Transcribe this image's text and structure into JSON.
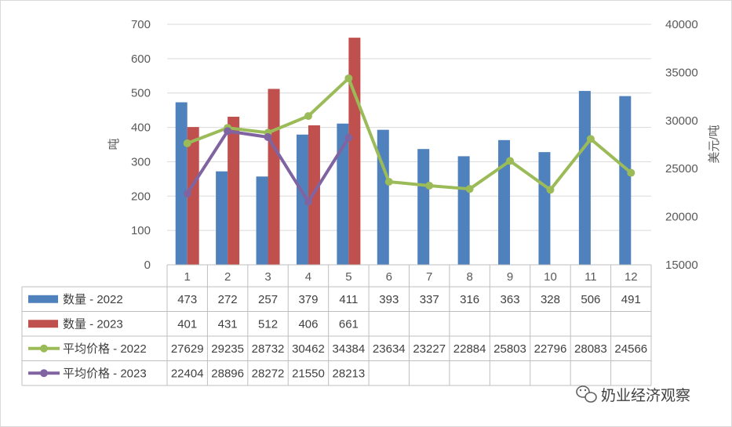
{
  "chart_data": {
    "type": "bar",
    "categories": [
      "1",
      "2",
      "3",
      "4",
      "5",
      "6",
      "7",
      "8",
      "9",
      "10",
      "11",
      "12"
    ],
    "series": [
      {
        "name": "数量 - 2022",
        "kind": "bar",
        "axis": "left",
        "color": "#4f81bd",
        "values": [
          473,
          272,
          257,
          379,
          411,
          393,
          337,
          316,
          363,
          328,
          506,
          491
        ]
      },
      {
        "name": "数量 - 2023",
        "kind": "bar",
        "axis": "left",
        "color": "#c0504d",
        "values": [
          401,
          431,
          512,
          406,
          661,
          null,
          null,
          null,
          null,
          null,
          null,
          null
        ]
      },
      {
        "name": "平均价格 - 2022",
        "kind": "line",
        "axis": "right",
        "color": "#9bbb59",
        "values": [
          27629,
          29235,
          28732,
          30462,
          34384,
          23634,
          23227,
          22884,
          25803,
          22796,
          28083,
          24566
        ]
      },
      {
        "name": "平均价格 - 2023",
        "kind": "line",
        "axis": "right",
        "color": "#8064a2",
        "values": [
          22404,
          28896,
          28272,
          21550,
          28213,
          null,
          null,
          null,
          null,
          null,
          null,
          null
        ]
      }
    ],
    "ylabel": "吨",
    "y2label": "美元/吨",
    "ylim": [
      0,
      700
    ],
    "y2lim": [
      15000,
      40000
    ],
    "yticks": [
      "0",
      "100",
      "200",
      "300",
      "400",
      "500",
      "600",
      "700"
    ],
    "y2ticks": [
      "15000",
      "20000",
      "25000",
      "30000",
      "35000",
      "40000"
    ],
    "grid": true,
    "legend": "data-table-below"
  },
  "watermark": {
    "text": "奶业经济观察",
    "icon": "wechat-icon"
  }
}
